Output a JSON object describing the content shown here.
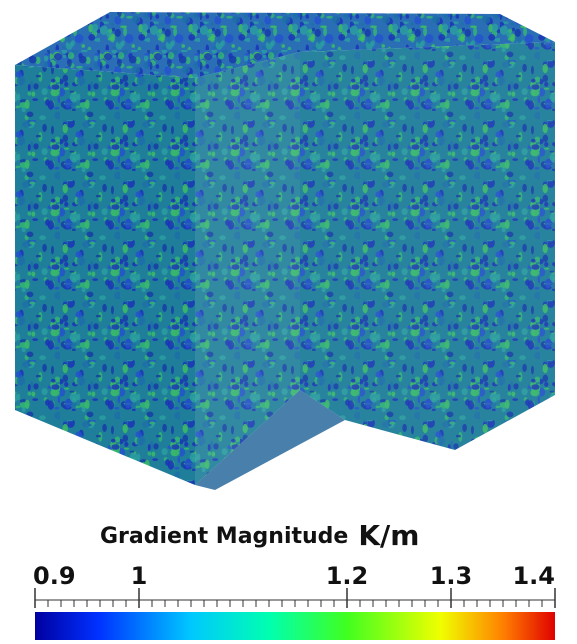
{
  "chart_data": {
    "type": "colorbar",
    "title": "Gradient Magnitude",
    "unit": "K/m",
    "xlim": [
      0.9,
      1.4
    ],
    "xticks": [
      0.9,
      1,
      1.2,
      1.3,
      1.4
    ]
  }
}
